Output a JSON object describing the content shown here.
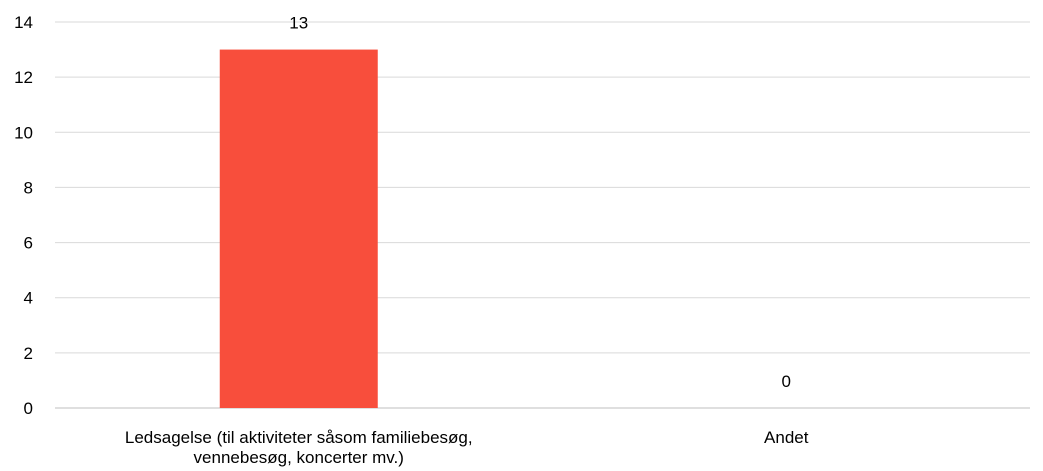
{
  "chart_data": {
    "type": "bar",
    "categories": [
      [
        "Ledsagelse (til aktiviteter såsom familiebesøg,",
        "vennebesøg, koncerter mv.)"
      ],
      [
        "Andet"
      ]
    ],
    "values": [
      13,
      0
    ],
    "data_labels": [
      "13",
      "0"
    ],
    "y_ticks": [
      "0",
      "2",
      "4",
      "6",
      "8",
      "10",
      "12",
      "14"
    ],
    "ylim": [
      0,
      14
    ],
    "grid": true,
    "legend": "none",
    "colors": {
      "bar": "#f84e3c",
      "grid": "#d9d9d9",
      "axis": "#bfbfbf",
      "text": "#000000"
    }
  }
}
